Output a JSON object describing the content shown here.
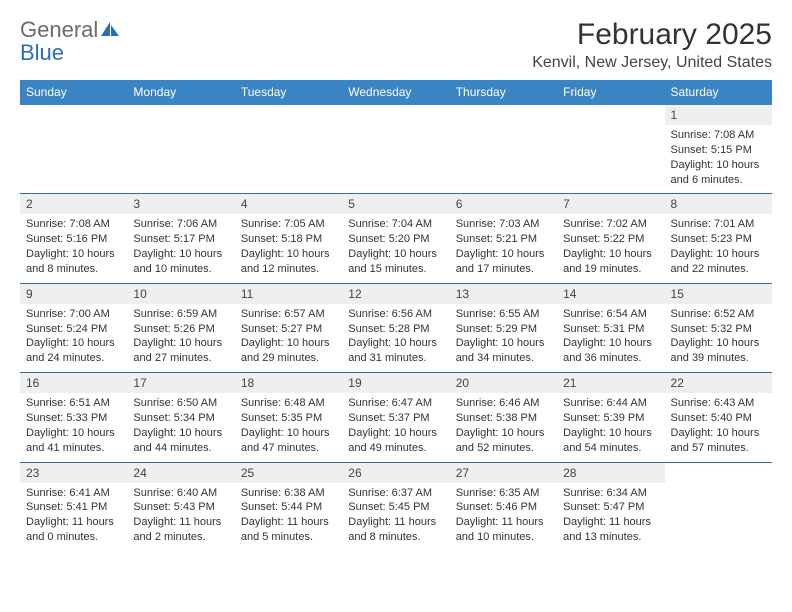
{
  "logo": {
    "word1": "General",
    "word2": "Blue"
  },
  "title": "February 2025",
  "location": "Kenvil, New Jersey, United States",
  "day_names": [
    "Sunday",
    "Monday",
    "Tuesday",
    "Wednesday",
    "Thursday",
    "Friday",
    "Saturday"
  ],
  "colors": {
    "header_bg": "#3b84c4",
    "header_text": "#ffffff",
    "daynum_bg": "#efefef",
    "row_border": "#3b6a94",
    "logo_gray": "#6b6b6b",
    "logo_blue": "#2a6fb5"
  },
  "weeks": [
    [
      null,
      null,
      null,
      null,
      null,
      null,
      {
        "n": "1",
        "sunrise": "7:08 AM",
        "sunset": "5:15 PM",
        "dl_h": "10",
        "dl_m": "6"
      }
    ],
    [
      {
        "n": "2",
        "sunrise": "7:08 AM",
        "sunset": "5:16 PM",
        "dl_h": "10",
        "dl_m": "8"
      },
      {
        "n": "3",
        "sunrise": "7:06 AM",
        "sunset": "5:17 PM",
        "dl_h": "10",
        "dl_m": "10"
      },
      {
        "n": "4",
        "sunrise": "7:05 AM",
        "sunset": "5:18 PM",
        "dl_h": "10",
        "dl_m": "12"
      },
      {
        "n": "5",
        "sunrise": "7:04 AM",
        "sunset": "5:20 PM",
        "dl_h": "10",
        "dl_m": "15"
      },
      {
        "n": "6",
        "sunrise": "7:03 AM",
        "sunset": "5:21 PM",
        "dl_h": "10",
        "dl_m": "17"
      },
      {
        "n": "7",
        "sunrise": "7:02 AM",
        "sunset": "5:22 PM",
        "dl_h": "10",
        "dl_m": "19"
      },
      {
        "n": "8",
        "sunrise": "7:01 AM",
        "sunset": "5:23 PM",
        "dl_h": "10",
        "dl_m": "22"
      }
    ],
    [
      {
        "n": "9",
        "sunrise": "7:00 AM",
        "sunset": "5:24 PM",
        "dl_h": "10",
        "dl_m": "24"
      },
      {
        "n": "10",
        "sunrise": "6:59 AM",
        "sunset": "5:26 PM",
        "dl_h": "10",
        "dl_m": "27"
      },
      {
        "n": "11",
        "sunrise": "6:57 AM",
        "sunset": "5:27 PM",
        "dl_h": "10",
        "dl_m": "29"
      },
      {
        "n": "12",
        "sunrise": "6:56 AM",
        "sunset": "5:28 PM",
        "dl_h": "10",
        "dl_m": "31"
      },
      {
        "n": "13",
        "sunrise": "6:55 AM",
        "sunset": "5:29 PM",
        "dl_h": "10",
        "dl_m": "34"
      },
      {
        "n": "14",
        "sunrise": "6:54 AM",
        "sunset": "5:31 PM",
        "dl_h": "10",
        "dl_m": "36"
      },
      {
        "n": "15",
        "sunrise": "6:52 AM",
        "sunset": "5:32 PM",
        "dl_h": "10",
        "dl_m": "39"
      }
    ],
    [
      {
        "n": "16",
        "sunrise": "6:51 AM",
        "sunset": "5:33 PM",
        "dl_h": "10",
        "dl_m": "41"
      },
      {
        "n": "17",
        "sunrise": "6:50 AM",
        "sunset": "5:34 PM",
        "dl_h": "10",
        "dl_m": "44"
      },
      {
        "n": "18",
        "sunrise": "6:48 AM",
        "sunset": "5:35 PM",
        "dl_h": "10",
        "dl_m": "47"
      },
      {
        "n": "19",
        "sunrise": "6:47 AM",
        "sunset": "5:37 PM",
        "dl_h": "10",
        "dl_m": "49"
      },
      {
        "n": "20",
        "sunrise": "6:46 AM",
        "sunset": "5:38 PM",
        "dl_h": "10",
        "dl_m": "52"
      },
      {
        "n": "21",
        "sunrise": "6:44 AM",
        "sunset": "5:39 PM",
        "dl_h": "10",
        "dl_m": "54"
      },
      {
        "n": "22",
        "sunrise": "6:43 AM",
        "sunset": "5:40 PM",
        "dl_h": "10",
        "dl_m": "57"
      }
    ],
    [
      {
        "n": "23",
        "sunrise": "6:41 AM",
        "sunset": "5:41 PM",
        "dl_h": "11",
        "dl_m": "0"
      },
      {
        "n": "24",
        "sunrise": "6:40 AM",
        "sunset": "5:43 PM",
        "dl_h": "11",
        "dl_m": "2"
      },
      {
        "n": "25",
        "sunrise": "6:38 AM",
        "sunset": "5:44 PM",
        "dl_h": "11",
        "dl_m": "5"
      },
      {
        "n": "26",
        "sunrise": "6:37 AM",
        "sunset": "5:45 PM",
        "dl_h": "11",
        "dl_m": "8"
      },
      {
        "n": "27",
        "sunrise": "6:35 AM",
        "sunset": "5:46 PM",
        "dl_h": "11",
        "dl_m": "10"
      },
      {
        "n": "28",
        "sunrise": "6:34 AM",
        "sunset": "5:47 PM",
        "dl_h": "11",
        "dl_m": "13"
      },
      null
    ]
  ]
}
